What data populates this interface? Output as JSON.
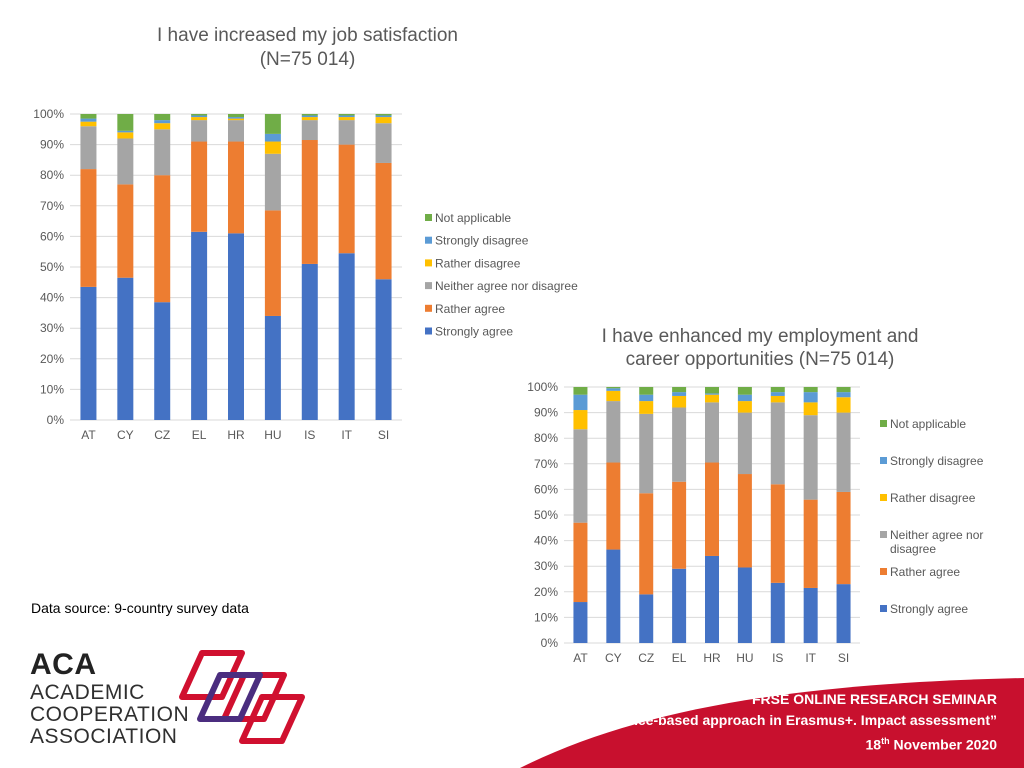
{
  "chart_data": [
    {
      "type": "bar",
      "stacked": true,
      "title": "I have increased my job satisfaction (N=75 014)",
      "title_lines": [
        "I have increased my job satisfaction",
        "(N=75 014)"
      ],
      "categories": [
        "AT",
        "CY",
        "CZ",
        "EL",
        "HR",
        "HU",
        "IS",
        "IT",
        "SI"
      ],
      "ylim": [
        0,
        100
      ],
      "y_ticks": [
        "0%",
        "10%",
        "20%",
        "30%",
        "40%",
        "50%",
        "60%",
        "70%",
        "80%",
        "90%",
        "100%"
      ],
      "grid": true,
      "legend_position": "right",
      "series": [
        {
          "name": "Strongly agree",
          "color": "#4472c4",
          "values": [
            43.5,
            46.5,
            38.5,
            61.5,
            61,
            34,
            51,
            54.5,
            46
          ]
        },
        {
          "name": "Rather agree",
          "color": "#ed7d31",
          "values": [
            38.5,
            30.5,
            41.5,
            29.5,
            30,
            34.5,
            40.5,
            35.5,
            38
          ]
        },
        {
          "name": "Neither agree nor disagree",
          "color": "#a5a5a5",
          "values": [
            14,
            15,
            15,
            7,
            7,
            18.5,
            6.5,
            8,
            13
          ]
        },
        {
          "name": "Rather disagree",
          "color": "#ffc000",
          "values": [
            1.5,
            2,
            2,
            1,
            0.5,
            4,
            1,
            1,
            2
          ]
        },
        {
          "name": "Strongly disagree",
          "color": "#5b9bd5",
          "values": [
            1,
            0.5,
            1,
            0.5,
            0.5,
            2.5,
            0.5,
            0.5,
            0.5
          ]
        },
        {
          "name": "Not applicable",
          "color": "#70ad47",
          "values": [
            1.5,
            5.5,
            2,
            0.5,
            1,
            6.5,
            0.5,
            0.5,
            0.5
          ]
        }
      ]
    },
    {
      "type": "bar",
      "stacked": true,
      "title": "I have enhanced my employment and career opportunities (N=75 014)",
      "title_lines": [
        "I have enhanced my employment and",
        "career opportunities (N=75 014)"
      ],
      "categories": [
        "AT",
        "CY",
        "CZ",
        "EL",
        "HR",
        "HU",
        "IS",
        "IT",
        "SI"
      ],
      "ylim": [
        0,
        100
      ],
      "y_ticks": [
        "0%",
        "10%",
        "20%",
        "30%",
        "40%",
        "50%",
        "60%",
        "70%",
        "80%",
        "90%",
        "100%"
      ],
      "grid": true,
      "legend_position": "right",
      "series": [
        {
          "name": "Strongly agree",
          "color": "#4472c4",
          "values": [
            16,
            36.5,
            19,
            29,
            34,
            29.5,
            23.5,
            21.5,
            23
          ]
        },
        {
          "name": "Rather agree",
          "color": "#ed7d31",
          "values": [
            31,
            34,
            39.5,
            34,
            36.5,
            36.5,
            38.5,
            34.5,
            36
          ]
        },
        {
          "name": "Neither agree nor disagree",
          "color": "#a5a5a5",
          "values": [
            36.5,
            24,
            31,
            29,
            23.5,
            24,
            32,
            33,
            31
          ]
        },
        {
          "name": "Rather disagree",
          "color": "#ffc000",
          "values": [
            7.5,
            4,
            5,
            4.5,
            3,
            4.5,
            2.5,
            5,
            6
          ]
        },
        {
          "name": "Strongly disagree",
          "color": "#5b9bd5",
          "values": [
            6,
            1,
            2.5,
            1.5,
            0.5,
            2.5,
            1.5,
            4,
            2
          ]
        },
        {
          "name": "Not applicable",
          "color": "#70ad47",
          "values": [
            3,
            0.5,
            3,
            2,
            2.5,
            3,
            2,
            2,
            2
          ]
        }
      ]
    }
  ],
  "legend1": [
    "Not applicable",
    "Strongly disagree",
    "Rather disagree",
    "Neither agree nor disagree",
    "Rather agree",
    "Strongly agree"
  ],
  "legend2": [
    "Not applicable",
    "Strongly disagree",
    "Rather disagree",
    "Neither agree nor disagree",
    "Rather agree",
    "Strongly agree"
  ],
  "source": "Data source: 9-country survey data",
  "logo": {
    "abbr": "ACA",
    "line1": "ACADEMIC",
    "line2": "COOPERATION",
    "line3": "ASSOCIATION"
  },
  "banner": {
    "line1": "FRSE ONLINE RESEARCH SEMINAR",
    "line2": "“Evidence-based approach in Erasmus+. Impact assessment”",
    "date_day": "18",
    "date_sup": "th",
    "date_rest": " November 2020"
  },
  "colors": {
    "banner": "#c8102e",
    "logo_red": "#d0102f",
    "logo_purple": "#4b2d7f"
  }
}
